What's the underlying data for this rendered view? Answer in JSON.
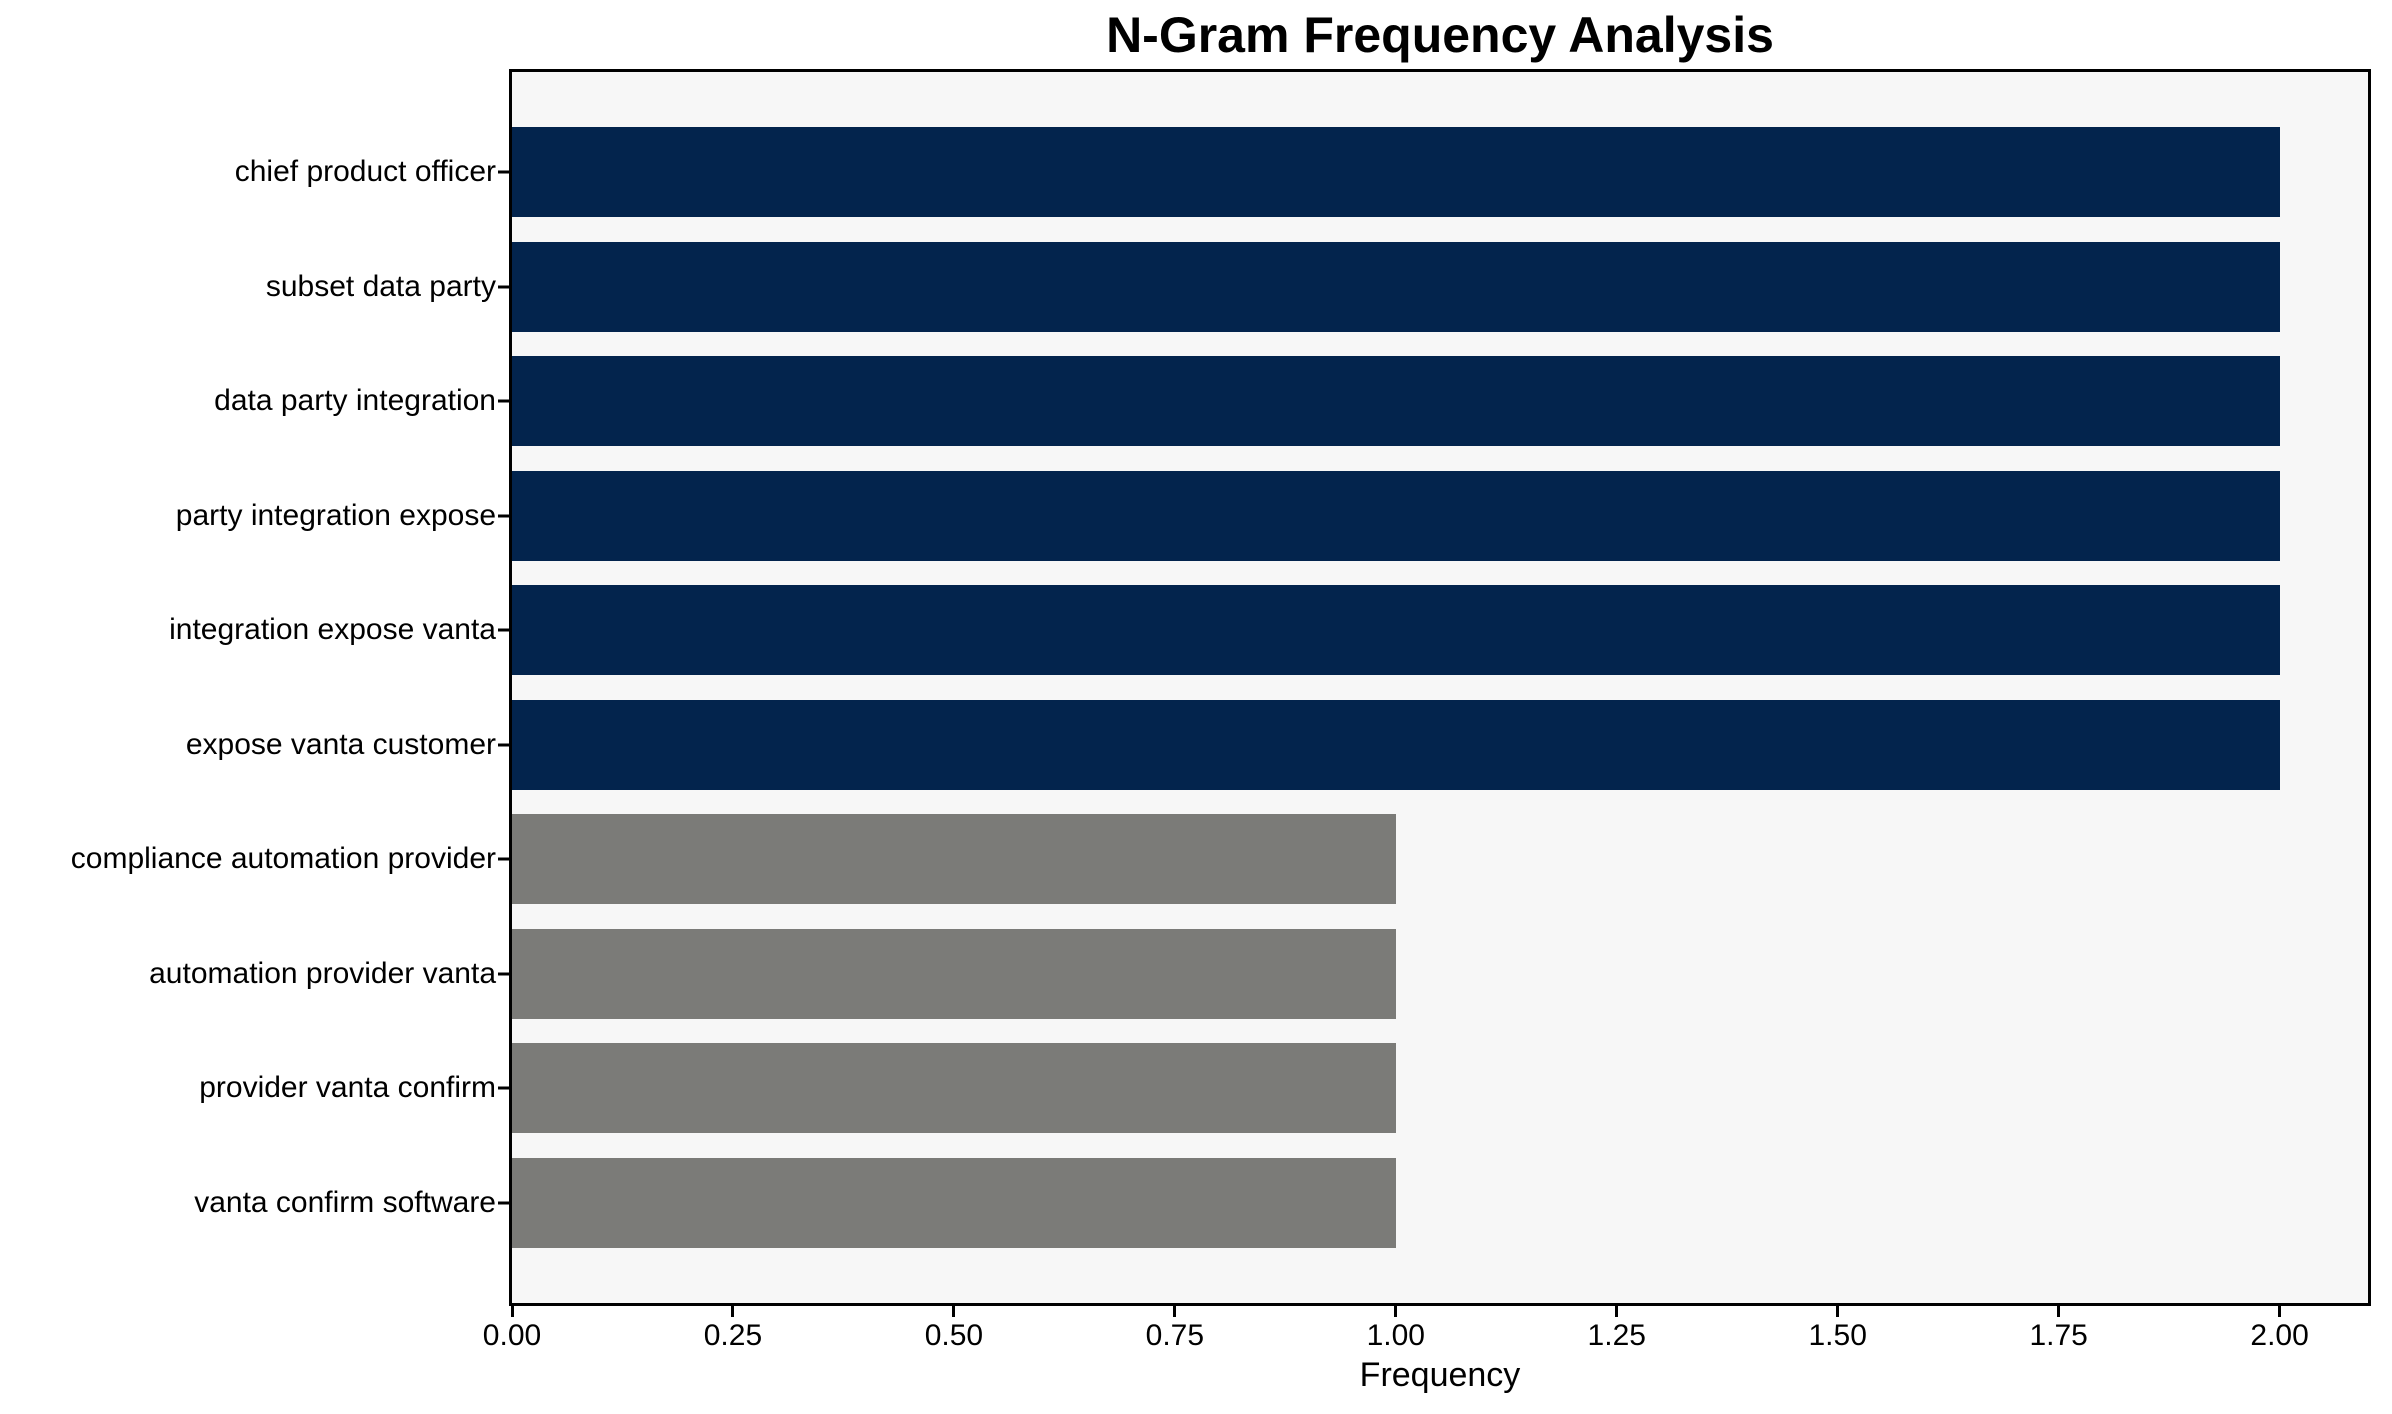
{
  "chart_data": {
    "type": "bar",
    "orientation": "horizontal",
    "title": "N-Gram Frequency Analysis",
    "xlabel": "Frequency",
    "ylabel": "",
    "categories": [
      "chief product officer",
      "subset data party",
      "data party integration",
      "party integration expose",
      "integration expose vanta",
      "expose vanta customer",
      "compliance automation provider",
      "automation provider vanta",
      "provider vanta confirm",
      "vanta confirm software"
    ],
    "values": [
      2,
      2,
      2,
      2,
      2,
      2,
      1,
      1,
      1,
      1
    ],
    "bar_colors": [
      "#03244d",
      "#03244d",
      "#03244d",
      "#03244d",
      "#03244d",
      "#03244d",
      "#7b7b78",
      "#7b7b78",
      "#7b7b78",
      "#7b7b78"
    ],
    "xlim": [
      0,
      2.1
    ],
    "x_ticks": {
      "values": [
        0,
        0.25,
        0.5,
        0.75,
        1.0,
        1.25,
        1.5,
        1.75,
        2.0
      ],
      "labels": [
        "0.00",
        "0.25",
        "0.50",
        "0.75",
        "1.00",
        "1.25",
        "1.50",
        "1.75",
        "2.00"
      ]
    },
    "grid": false,
    "legend_position": "none",
    "colors": {
      "high_frequency_bar": "#03244d",
      "low_frequency_bar": "#7b7b78",
      "plot_background": "#f7f7f7",
      "figure_background": "#ffffff",
      "spine": "#000000",
      "text": "#000000"
    }
  }
}
